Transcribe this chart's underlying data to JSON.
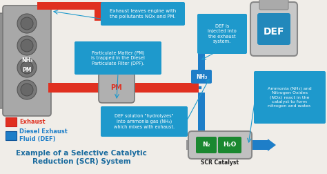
{
  "bg_color": "#f0ede8",
  "exhaust_color": "#e03020",
  "def_color": "#1e7ec8",
  "callout_bg": "#1e99cc",
  "title": "Example of a Selective Catalytic\nReduction (SCR) System",
  "title_color": "#1a6b9e",
  "title_fontsize": 7.5,
  "callout1": "Exhaust leaves engine with\nthe pollutants NOx and PM.",
  "callout2": "Particulate Matter (PM)\nis trapped in the Diesel\nParticulate Filter (DPF).",
  "callout3": "DEF is\ninjected into\nthe exhaust\nsystem.",
  "callout4": "DEF solution \"hydrolyzes\"\ninto ammonia gas (NH₃)\nwhich mixes with exhaust.",
  "callout5": "Ammonia (NH₃) and\nNitrogen Oxides\n(NOx) react in the\ncatalyst to form\nnitrogen and water.",
  "exhaust_label": "Exhaust",
  "def_label": "Diesel Exhaust\nFluid (DEF)",
  "scr_label": "SCR Catalyst",
  "def_tank_label": "DEF",
  "nh3_label": "NH₃",
  "n2_label": "N₂",
  "h2o_label": "H₂O",
  "pm_label": "PM",
  "nh3_pm_top": "NH₃",
  "nh3_pm_bot": "PM"
}
